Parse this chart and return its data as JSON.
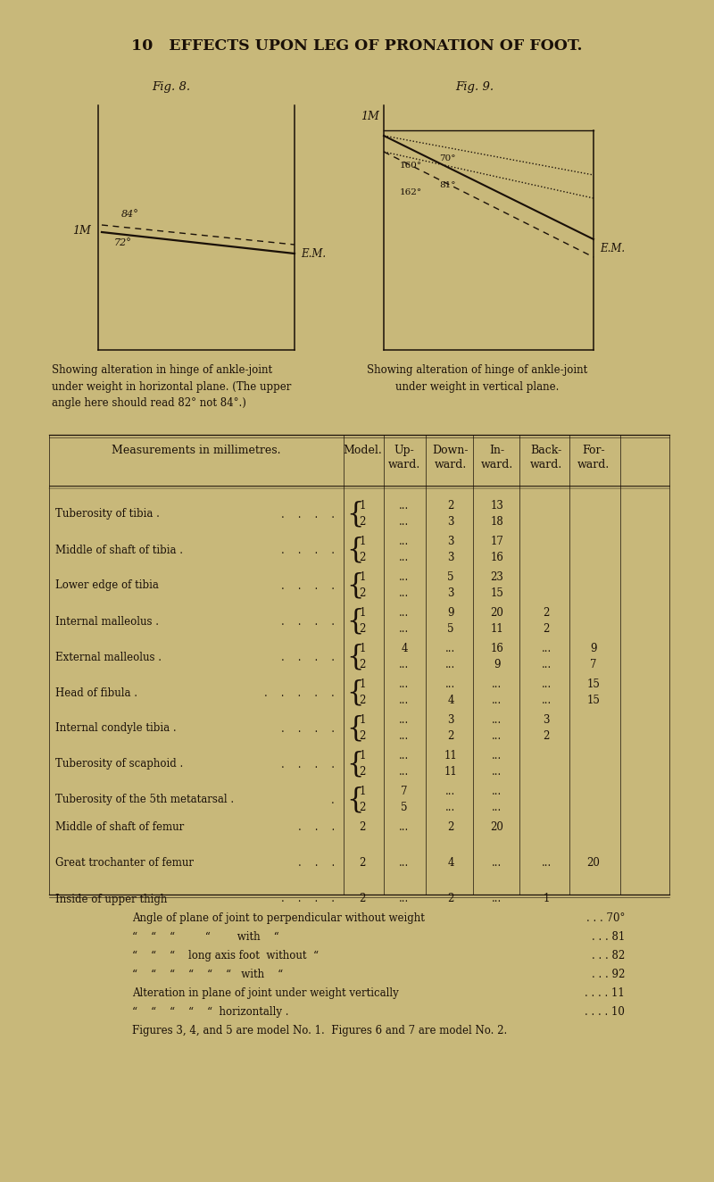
{
  "bg_color": "#c8b87a",
  "text_color": "#1a1008",
  "page_header": "10   EFFECTS UPON LEG OF PRONATION OF FOOT.",
  "fig8_label": "Fig. 8.",
  "fig9_label": "Fig. 9.",
  "fig8_caption": "Showing alteration in hinge of ankle-joint\nunder weight in horizontal plane. (The upper\nangle here should read 82° not 84°.)",
  "fig9_caption": "Showing alteration of hinge of ankle-joint\nunder weight in vertical plane.",
  "rows": [
    {
      "label": "Tuberosity of tibia .",
      "dots": "    .    .    .    .",
      "models": [
        "1",
        "2"
      ],
      "up": [
        "...",
        "..."
      ],
      "down": [
        "2",
        "3"
      ],
      "inward": [
        "13",
        "18"
      ],
      "back": [
        "",
        ""
      ],
      "forward": [
        "",
        ""
      ]
    },
    {
      "label": "Middle of shaft of tibia .",
      "dots": "    .    .    .    .",
      "models": [
        "1",
        "2"
      ],
      "up": [
        "...",
        "..."
      ],
      "down": [
        "3",
        "3"
      ],
      "inward": [
        "17",
        "16"
      ],
      "back": [
        "",
        ""
      ],
      "forward": [
        "",
        ""
      ]
    },
    {
      "label": "Lower edge of tibia",
      "dots": "    .    .    .    .",
      "models": [
        "1",
        "2"
      ],
      "up": [
        "...",
        "..."
      ],
      "down": [
        "5",
        "3"
      ],
      "inward": [
        "23",
        "15"
      ],
      "back": [
        "",
        ""
      ],
      "forward": [
        "",
        ""
      ]
    },
    {
      "label": "Internal malleolus .",
      "dots": "    .    .    .    .",
      "models": [
        "1",
        "2"
      ],
      "up": [
        "...",
        "..."
      ],
      "down": [
        "9",
        "5"
      ],
      "inward": [
        "20",
        "11"
      ],
      "back": [
        "2",
        "2"
      ],
      "forward": [
        "",
        ""
      ]
    },
    {
      "label": "External malleolus .",
      "dots": "    .    .    .    .",
      "models": [
        "1",
        "2"
      ],
      "up": [
        "4",
        "..."
      ],
      "down": [
        "...",
        "..."
      ],
      "inward": [
        "16",
        "9"
      ],
      "back": [
        "...",
        "..."
      ],
      "forward": [
        "9",
        "7"
      ]
    },
    {
      "label": "Head of fibula .",
      "dots": "    .    .    .    .    .",
      "models": [
        "1",
        "2"
      ],
      "up": [
        "...",
        "..."
      ],
      "down": [
        "...",
        "4"
      ],
      "inward": [
        "...",
        "..."
      ],
      "back": [
        "...",
        "..."
      ],
      "forward": [
        "15",
        "15"
      ]
    },
    {
      "label": "Internal condyle tibia .",
      "dots": "    .    .    .    .",
      "models": [
        "1",
        "2"
      ],
      "up": [
        "...",
        "..."
      ],
      "down": [
        "3",
        "2"
      ],
      "inward": [
        "...",
        "..."
      ],
      "back": [
        "3",
        "2"
      ],
      "forward": [
        "",
        ""
      ]
    },
    {
      "label": "Tuberosity of scaphoid .",
      "dots": "    .    .    .    .",
      "models": [
        "1",
        "2"
      ],
      "up": [
        "...",
        "..."
      ],
      "down": [
        "11",
        "11"
      ],
      "inward": [
        "...",
        "..."
      ],
      "back": [
        "",
        ""
      ],
      "forward": [
        "",
        ""
      ]
    },
    {
      "label": "Tuberosity of the 5th metatarsal .",
      "dots": "    .",
      "models": [
        "1",
        "2"
      ],
      "up": [
        "7",
        "5"
      ],
      "down": [
        "...",
        "..."
      ],
      "inward": [
        "...",
        "..."
      ],
      "back": [
        "",
        ""
      ],
      "forward": [
        "",
        ""
      ]
    },
    {
      "label": "Middle of shaft of femur",
      "dots": "    .    .    .",
      "models": [
        "2"
      ],
      "up": [
        "..."
      ],
      "down": [
        "2"
      ],
      "inward": [
        "20"
      ],
      "back": [
        ""
      ],
      "forward": [
        ""
      ]
    },
    {
      "label": "Great trochanter of femur",
      "dots": "    .    .    .",
      "models": [
        "2"
      ],
      "up": [
        "..."
      ],
      "down": [
        "4"
      ],
      "inward": [
        "..."
      ],
      "back": [
        "..."
      ],
      "forward": [
        "20"
      ]
    },
    {
      "label": "Inside of upper thigh",
      "dots": "    .    .    .    .",
      "models": [
        "2"
      ],
      "up": [
        "..."
      ],
      "down": [
        "2"
      ],
      "inward": [
        "..."
      ],
      "back": [
        "1"
      ],
      "forward": [
        ""
      ]
    }
  ],
  "footnotes": [
    [
      "Angle of plane of joint to perpendicular without weight",
      ". . . 70°"
    ],
    [
      "“    “    “         “        with    “",
      ". . . 81"
    ],
    [
      "“    “    “    long axis foot  without  “",
      ". . . 82"
    ],
    [
      "“    “    “    “    “    “   with    “",
      ". . . 92"
    ],
    [
      "Alteration in plane of joint under weight vertically",
      ". . . . 11"
    ],
    [
      "“    “    “    “    “  horizontally .",
      ". . . . 10"
    ],
    [
      "Figures 3, 4, and 5 are model No. 1.  Figures 6 and 7 are model No. 2.",
      ""
    ]
  ]
}
